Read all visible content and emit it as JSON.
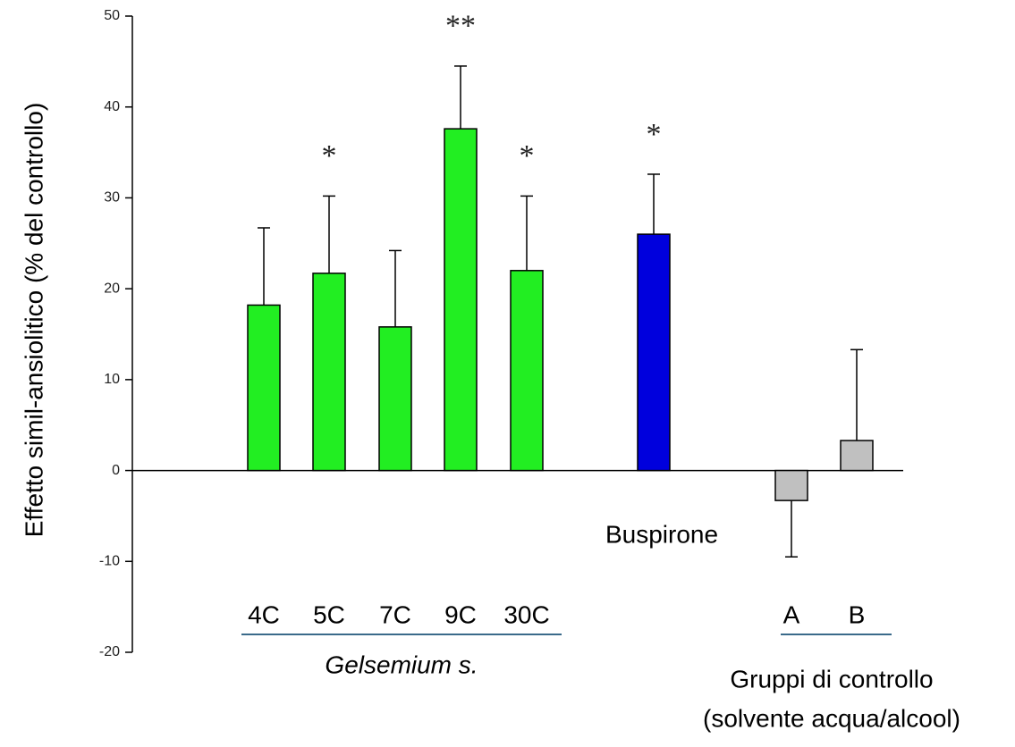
{
  "chart_data": {
    "type": "bar",
    "y_label": "Effetto simil-ansiolitico (% del controllo)",
    "categories": [
      "4C",
      "5C",
      "7C",
      "9C",
      "30C",
      "Buspirone",
      "A",
      "B"
    ],
    "values": [
      18.2,
      21.7,
      15.8,
      37.6,
      22,
      26,
      -3.3,
      3.3
    ],
    "errors": [
      8.5,
      8.5,
      8.4,
      6.9,
      8.2,
      6.6,
      6.2,
      10
    ],
    "colors": [
      "#22ee22",
      "#22ee22",
      "#22ee22",
      "#22ee22",
      "#22ee22",
      "#0000dd",
      "#c0c0c0",
      "#c0c0c0"
    ],
    "significance": [
      null,
      "*",
      null,
      "**",
      "*",
      "*",
      null,
      null
    ],
    "group_labels": [
      "Gelsemium s.",
      "Gruppi di controllo",
      "(solvente acqua/alcool)"
    ],
    "ylim": [
      -20,
      50
    ],
    "yticks": [
      -20,
      -10,
      0,
      10,
      20,
      30,
      40,
      50
    ]
  }
}
